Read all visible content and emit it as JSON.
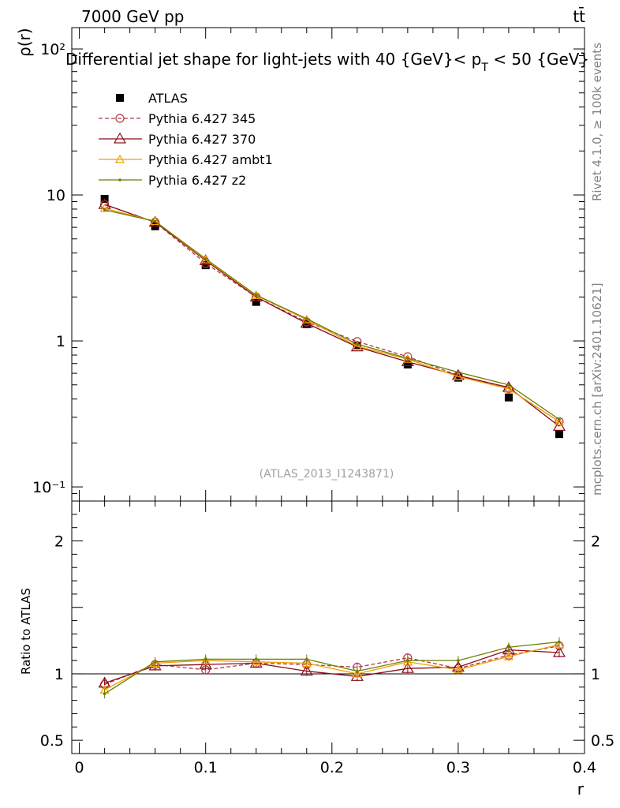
{
  "header": {
    "energy_label": "7000 GeV pp",
    "process_label": "tt̄",
    "title_prefix": "Differential jet shape for light-jets with 40 {GeV}< p",
    "title_sub": "T",
    "title_suffix": " < 50 {GeV}",
    "analysis_id": "(ATLAS_2013_I1243871)",
    "side_text_top": "Rivet 4.1.0, ≥ 100k events",
    "side_text_bottom": "mcplots.cern.ch [arXiv:2401.10621]"
  },
  "colors": {
    "data": "#000000",
    "p345": "#b03a48",
    "p370": "#8b0a1a",
    "ambt1": "#f0a000",
    "z2": "#6b7f00"
  },
  "chart_data": [
    {
      "type": "line",
      "panel": "main",
      "ylabel": "ρ(r)",
      "yscale": "log",
      "ylim": [
        0.08,
        140
      ],
      "xlim": [
        -0.006,
        0.4
      ],
      "ytick_labels": [
        "10²",
        "10",
        "1",
        "10⁻¹"
      ],
      "ytick_values": [
        100,
        10,
        1,
        0.1
      ],
      "x": [
        0.02,
        0.06,
        0.1,
        0.14,
        0.18,
        0.22,
        0.26,
        0.3,
        0.34,
        0.38
      ],
      "series": [
        {
          "name": "ATLAS",
          "marker": "square",
          "values": [
            9.4,
            6.1,
            3.3,
            1.85,
            1.3,
            0.93,
            0.69,
            0.56,
            0.41,
            0.23
          ]
        },
        {
          "name": "Pythia 6.427 345",
          "marker": "circle-open",
          "dashed": true,
          "values": [
            8.6,
            6.5,
            3.4,
            2.0,
            1.35,
            0.99,
            0.78,
            0.58,
            0.47,
            0.28
          ]
        },
        {
          "name": "Pythia 6.427 370",
          "marker": "triangle-open",
          "dashed": false,
          "values": [
            8.6,
            6.5,
            3.55,
            2.0,
            1.32,
            0.91,
            0.72,
            0.58,
            0.48,
            0.26
          ]
        },
        {
          "name": "Pythia 6.427 ambt1",
          "marker": "triangle-open-small",
          "dashed": false,
          "values": [
            8.1,
            6.6,
            3.6,
            2.05,
            1.4,
            0.92,
            0.75,
            0.57,
            0.47,
            0.28
          ]
        },
        {
          "name": "Pythia 6.427 z2",
          "marker": "dot",
          "dashed": false,
          "values": [
            7.9,
            6.6,
            3.65,
            2.06,
            1.42,
            0.95,
            0.76,
            0.61,
            0.5,
            0.29
          ]
        }
      ]
    },
    {
      "type": "line",
      "panel": "ratio",
      "ylabel": "Ratio to ATLAS",
      "ylim": [
        0.4,
        2.3
      ],
      "xlim": [
        -0.006,
        0.4
      ],
      "xlabel": "r",
      "xtick_labels": [
        "0",
        "0.1",
        "0.2",
        "0.3",
        "0.4"
      ],
      "xtick_values": [
        0,
        0.1,
        0.2,
        0.3,
        0.4
      ],
      "ytick_labels": [
        "2",
        "1",
        "0.5"
      ],
      "ytick_values": [
        2,
        1,
        0.5
      ],
      "x": [
        0.02,
        0.06,
        0.1,
        0.14,
        0.18,
        0.22,
        0.26,
        0.3,
        0.34,
        0.38
      ],
      "series": [
        {
          "name": "Pythia 6.427 345",
          "values": [
            0.92,
            1.07,
            1.03,
            1.08,
            1.07,
            1.05,
            1.12,
            1.04,
            1.14,
            1.21
          ]
        },
        {
          "name": "Pythia 6.427 370",
          "values": [
            0.93,
            1.06,
            1.07,
            1.08,
            1.02,
            0.98,
            1.04,
            1.05,
            1.18,
            1.16
          ]
        },
        {
          "name": "Pythia 6.427 ambt1",
          "values": [
            0.88,
            1.08,
            1.1,
            1.09,
            1.08,
            1.0,
            1.09,
            1.03,
            1.13,
            1.22
          ]
        },
        {
          "name": "Pythia 6.427 z2",
          "values": [
            0.85,
            1.09,
            1.11,
            1.11,
            1.11,
            1.02,
            1.1,
            1.1,
            1.2,
            1.24
          ]
        }
      ]
    }
  ]
}
